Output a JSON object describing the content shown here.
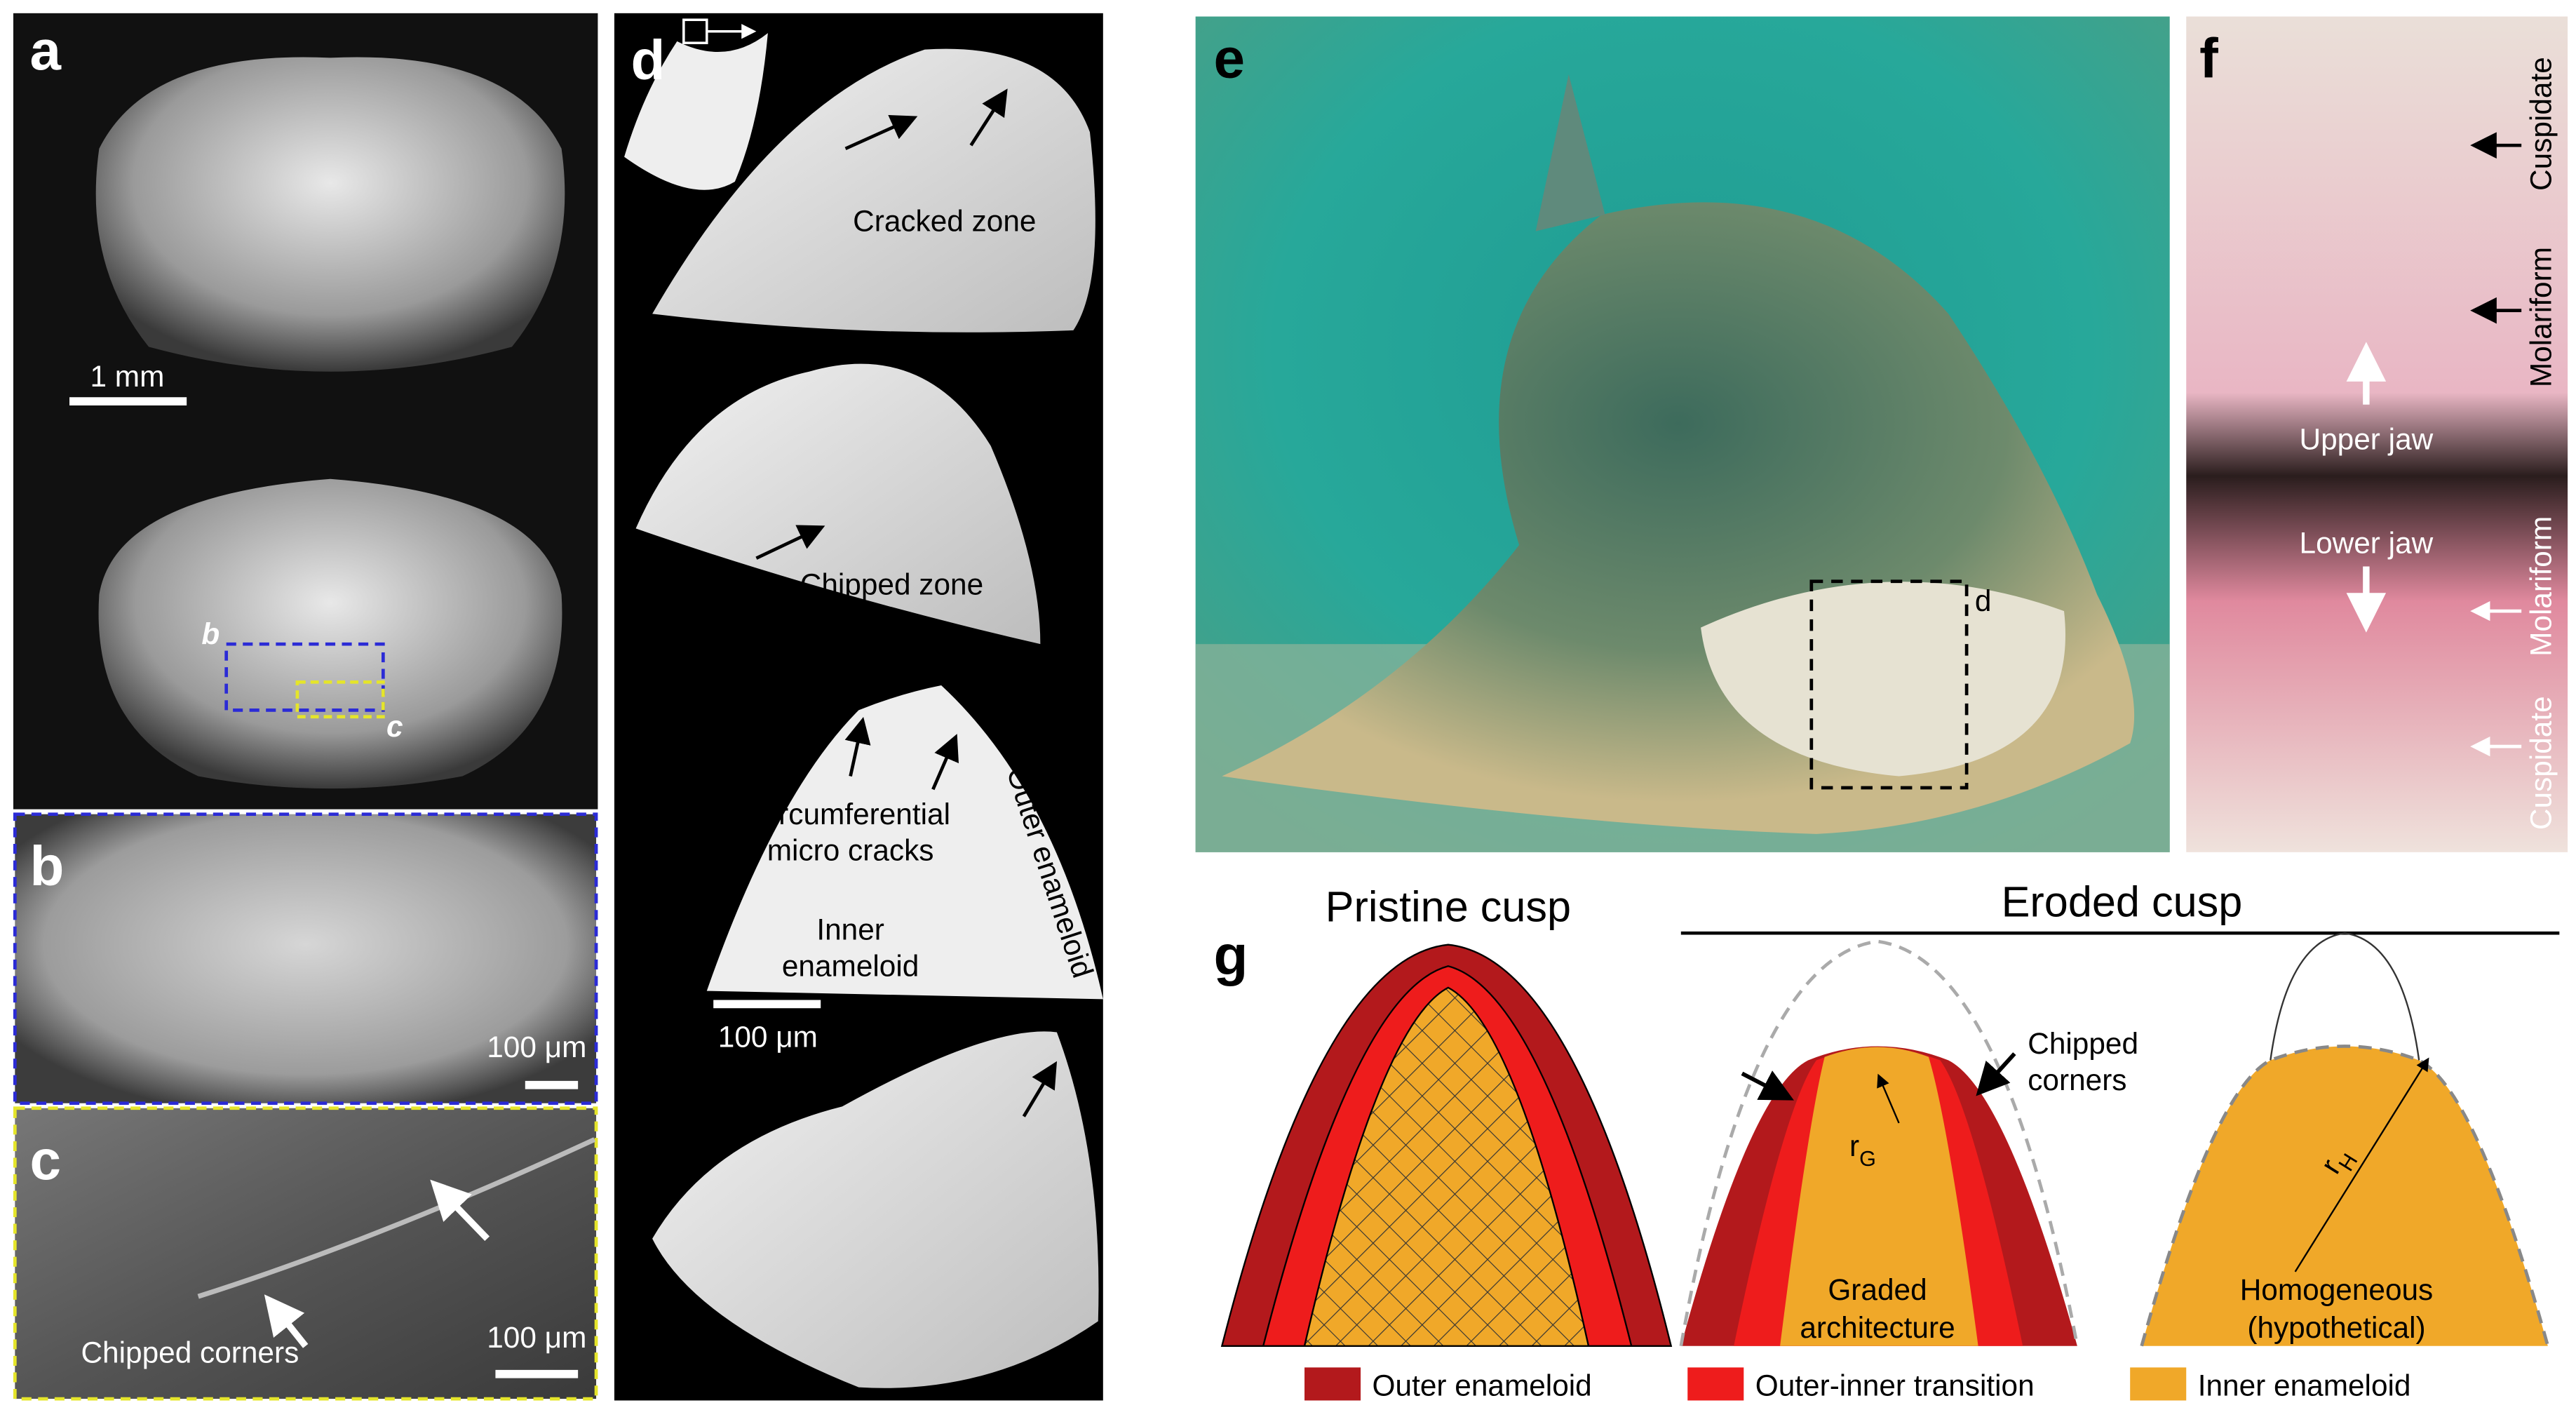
{
  "panels": {
    "a": {
      "label": "a",
      "scale_bar": "1 mm",
      "inset_b": "b",
      "inset_c": "c"
    },
    "b": {
      "label": "b",
      "scale_bar": "100 μm"
    },
    "c": {
      "label": "c",
      "annotation": "Chipped corners",
      "scale_bar": "100 μm"
    },
    "d": {
      "label": "d",
      "cracked_zone": "Cracked zone",
      "chipped_zone": "Chipped zone",
      "micro_cracks": [
        "Circumferential",
        "micro cracks"
      ],
      "outer_enameloid": "Outer enameloid",
      "inner_enameloid": [
        "Inner",
        "enameloid"
      ],
      "scale_bar": "100 μm"
    },
    "e": {
      "label": "e",
      "inset": "d"
    },
    "f": {
      "label": "f",
      "upper_cuspidate": "Cuspidate",
      "upper_molariform": "Molariform",
      "upper_jaw": "Upper jaw",
      "lower_jaw": "Lower jaw",
      "lower_molariform": "Molariform",
      "lower_cuspidate": "Cuspidate"
    },
    "g": {
      "label": "g",
      "pristine_title": "Pristine cusp",
      "eroded_title": "Eroded cusp",
      "chipped_corners": [
        "Chipped",
        "corners"
      ],
      "r_graded": {
        "base": "r",
        "sub": "G"
      },
      "r_homogeneous": {
        "base": "r",
        "sub": "H"
      },
      "graded": [
        "Graded",
        "architecture"
      ],
      "homogeneous": [
        "Homogeneous",
        "(hypothetical)"
      ],
      "legend": [
        "Outer enameloid",
        "Outer-inner transition",
        "Inner enameloid"
      ]
    }
  }
}
